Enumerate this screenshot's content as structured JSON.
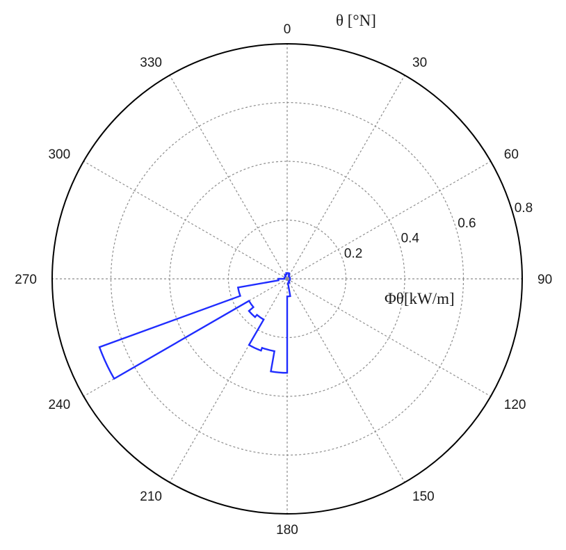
{
  "chart_data": {
    "type": "polar-rose",
    "title": "",
    "angular_axis": {
      "label": "θ [°N]",
      "ticks": [
        0,
        30,
        60,
        90,
        120,
        150,
        180,
        210,
        240,
        270,
        300,
        330
      ],
      "direction": "clockwise",
      "zero_at": "north"
    },
    "radial_axis": {
      "label": "Φθ[kW/m]",
      "ticks": [
        0.2,
        0.4,
        0.6,
        0.8
      ],
      "range": [
        0,
        0.8
      ]
    },
    "grid": true,
    "series": [
      {
        "color": "#1f2cff",
        "bins": [
          {
            "start": 0,
            "end": 10,
            "value": 0.02
          },
          {
            "start": 10,
            "end": 20,
            "value": 0.02
          },
          {
            "start": 20,
            "end": 30,
            "value": 0.015
          },
          {
            "start": 30,
            "end": 60,
            "value": 0.01
          },
          {
            "start": 60,
            "end": 90,
            "value": 0.01
          },
          {
            "start": 90,
            "end": 120,
            "value": 0.01
          },
          {
            "start": 120,
            "end": 150,
            "value": 0.01
          },
          {
            "start": 150,
            "end": 170,
            "value": 0.015
          },
          {
            "start": 170,
            "end": 180,
            "value": 0.06
          },
          {
            "start": 180,
            "end": 190,
            "value": 0.32
          },
          {
            "start": 190,
            "end": 200,
            "value": 0.25
          },
          {
            "start": 200,
            "end": 210,
            "value": 0.26
          },
          {
            "start": 210,
            "end": 220,
            "value": 0.16
          },
          {
            "start": 220,
            "end": 230,
            "value": 0.17
          },
          {
            "start": 230,
            "end": 240,
            "value": 0.15
          },
          {
            "start": 240,
            "end": 250,
            "value": 0.68
          },
          {
            "start": 250,
            "end": 260,
            "value": 0.17
          },
          {
            "start": 260,
            "end": 270,
            "value": 0.03
          },
          {
            "start": 270,
            "end": 300,
            "value": 0.01
          },
          {
            "start": 300,
            "end": 330,
            "value": 0.01
          },
          {
            "start": 330,
            "end": 350,
            "value": 0.015
          },
          {
            "start": 350,
            "end": 360,
            "value": 0.02
          }
        ]
      }
    ]
  }
}
